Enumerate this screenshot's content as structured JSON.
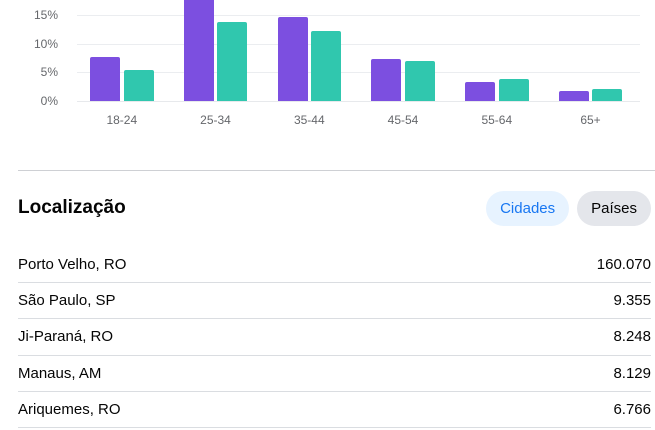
{
  "chart_data": {
    "type": "bar",
    "title": "",
    "xlabel": "",
    "ylabel": "",
    "categories": [
      "18-24",
      "25-34",
      "35-44",
      "45-54",
      "55-64",
      "65+"
    ],
    "series": [
      {
        "name": "purple",
        "color": "#7C4FE0",
        "values": [
          7.7,
          18.5,
          14.6,
          7.3,
          3.3,
          1.8
        ]
      },
      {
        "name": "teal",
        "color": "#30C7AE",
        "values": [
          5.4,
          13.8,
          12.2,
          7.0,
          3.9,
          2.1
        ]
      }
    ],
    "y_tick_labels": [
      "15%",
      "10%",
      "5%",
      "0%"
    ],
    "ylim_visible": [
      0,
      17.6
    ],
    "grid": true,
    "legend": "none",
    "note": "top of 25-34 purple bar is clipped by the viewport edge"
  },
  "location": {
    "title": "Localização",
    "tabs": [
      {
        "label": "Cidades",
        "active": true
      },
      {
        "label": "Países",
        "active": false
      }
    ],
    "rows": [
      {
        "label": "Porto Velho, RO",
        "value": "160.070"
      },
      {
        "label": "São Paulo, SP",
        "value": "9.355"
      },
      {
        "label": "Ji-Paraná, RO",
        "value": "8.248"
      },
      {
        "label": "Manaus, AM",
        "value": "8.129"
      },
      {
        "label": "Ariquemes, RO",
        "value": "6.766"
      }
    ]
  },
  "colors": {
    "bar_purple": "#7C4FE0",
    "bar_teal": "#30C7AE",
    "tab_active_bg": "#E7F3FF",
    "tab_active_text": "#1877F2",
    "tab_inactive_bg": "#E4E6EB",
    "tab_inactive_text": "#050505",
    "axis_text": "#65676B",
    "gridline": "#EBEDF0",
    "divider": "#DADDE1",
    "text_primary": "#050505"
  }
}
